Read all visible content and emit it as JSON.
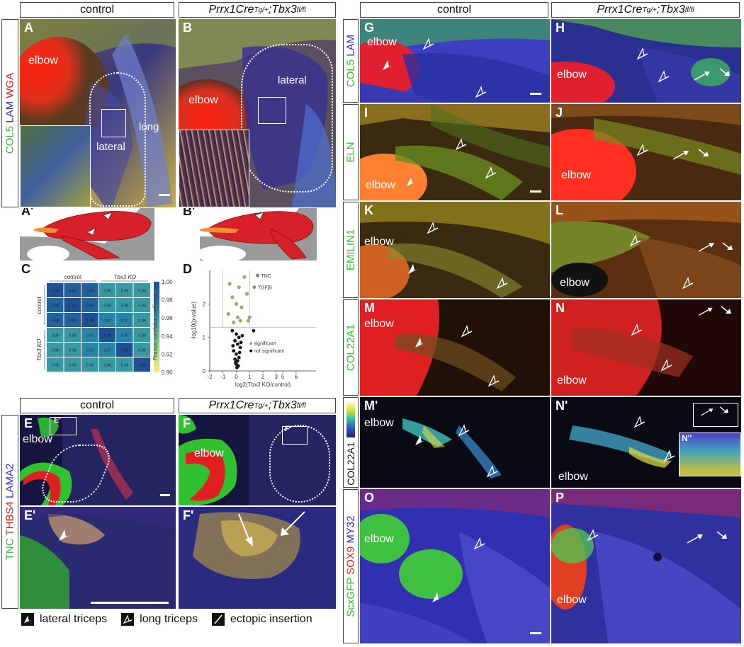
{
  "headers": {
    "left_control": "control",
    "left_mutant_pre": "Prrx1Cre",
    "left_mutant_sup1": "Tg/+",
    "left_mutant_mid": ";Tbx3",
    "left_mutant_sup2": "fl/fl",
    "right_control": "control",
    "right_mutant_pre": "Prrx1Cre",
    "right_mutant_sup1": "Tg/+",
    "right_mutant_mid": ";Tbx3",
    "right_mutant_sup2": "fl/fl",
    "lower_control": "control",
    "lower_mutant_pre": "Prrx1Cre",
    "lower_mutant_sup1": "Tg/+",
    "lower_mutant_mid": ";Tbx3",
    "lower_mutant_sup2": "fl/fl"
  },
  "stain_labels": {
    "ab_col5": "COL5",
    "ab_lam": "LAM",
    "ab_wga": "WGA",
    "gh_col5": "COL5",
    "gh_lam": "LAM",
    "ij": "ELN",
    "kl": "EMILIN1",
    "mn": "COL22A1",
    "mp": "COL22A1",
    "ef_tnc": "TNC",
    "ef_thbs4": "THBS4",
    "ef_lama2": "LAMA2",
    "op_scx": "ScxGFP",
    "op_sox9": "SOX9",
    "op_my32": "MY32"
  },
  "panels": {
    "A": {
      "label": "A",
      "t1": "elbow",
      "t2": "long",
      "t3": "lateral"
    },
    "B": {
      "label": "B",
      "t1": "elbow",
      "t2": "lateral"
    },
    "A2": {
      "label": "A'"
    },
    "B2": {
      "label": "B'"
    },
    "C": {
      "label": "C"
    },
    "D": {
      "label": "D"
    },
    "E": {
      "label": "E",
      "t1": "elbow",
      "inset": "E'"
    },
    "F": {
      "label": "F",
      "t1": "elbow",
      "inset": "F'"
    },
    "E2": {
      "label": "E'"
    },
    "F2": {
      "label": "F'"
    },
    "G": {
      "label": "G",
      "t1": "elbow"
    },
    "H": {
      "label": "H",
      "t1": "elbow"
    },
    "I": {
      "label": "I",
      "t1": "elbow"
    },
    "J": {
      "label": "J",
      "t1": "elbow"
    },
    "K": {
      "label": "K",
      "t1": "elbow"
    },
    "L": {
      "label": "L",
      "t1": "elbow"
    },
    "M": {
      "label": "M",
      "t1": "elbow"
    },
    "N": {
      "label": "N",
      "t1": "elbow"
    },
    "M2": {
      "label": "M'",
      "t1": "elbow"
    },
    "N2": {
      "label": "N'",
      "t1": "elbow",
      "inset": "N''"
    },
    "O": {
      "label": "O",
      "t1": "elbow"
    },
    "P": {
      "label": "P",
      "t1": "elbow"
    }
  },
  "chart_data": [
    {
      "type": "heatmap",
      "panel": "C",
      "col_groups": [
        "control",
        "Tbx3 KO"
      ],
      "row_groups": [
        "control",
        "Tbx3 KO"
      ],
      "values": [
        [
          1.0,
          0.99,
          0.99,
          0.96,
          0.96,
          0.96
        ],
        [
          0.99,
          1.0,
          0.99,
          0.96,
          0.96,
          0.96
        ],
        [
          0.99,
          0.99,
          1.0,
          0.97,
          0.97,
          0.96
        ],
        [
          0.96,
          0.96,
          0.97,
          1.0,
          0.97,
          0.96
        ],
        [
          0.96,
          0.96,
          0.97,
          0.97,
          1.0,
          0.96
        ],
        [
          0.96,
          0.96,
          0.96,
          0.96,
          0.96,
          1.0
        ]
      ],
      "colorbar_label": "Pearson correlation coefficient",
      "colorbar_ticks": [
        "1.00",
        "0.98",
        "0.96",
        "0.94",
        "0.92",
        "0.90"
      ]
    },
    {
      "type": "scatter",
      "panel": "D",
      "xlabel": "log2(Tbx3 KO/control)",
      "ylabel": "-log10(p-value)",
      "xticks": [
        "-2",
        "-1",
        "0",
        "1",
        "2",
        "3",
        "5",
        "6"
      ],
      "yticks": [
        "0",
        "1",
        "2"
      ],
      "annotations": [
        "TNC",
        "TGFβI"
      ],
      "legend": [
        "significant",
        "not significant"
      ],
      "significant": [
        [
          -0.5,
          2.6
        ],
        [
          0.2,
          2.5
        ],
        [
          -0.3,
          2.2
        ],
        [
          0.0,
          2.0
        ],
        [
          0.4,
          1.9
        ],
        [
          -0.6,
          1.7
        ],
        [
          0.1,
          1.6
        ],
        [
          0.3,
          1.5
        ],
        [
          -0.2,
          1.45
        ],
        [
          0.6,
          2.8
        ],
        [
          0.8,
          2.3
        ],
        [
          1.0,
          1.6
        ],
        [
          0.9,
          1.5
        ]
      ],
      "not_significant": [
        [
          -0.3,
          1.2
        ],
        [
          0.0,
          1.1
        ],
        [
          0.2,
          1.0
        ],
        [
          -0.1,
          0.9
        ],
        [
          0.1,
          0.8
        ],
        [
          0.3,
          0.7
        ],
        [
          -0.2,
          0.6
        ],
        [
          0.0,
          0.5
        ],
        [
          0.2,
          0.4
        ],
        [
          -0.1,
          0.35
        ],
        [
          0.1,
          0.3
        ],
        [
          0.0,
          0.2
        ],
        [
          0.05,
          0.1
        ],
        [
          0.15,
          0.15
        ],
        [
          -0.05,
          0.25
        ],
        [
          0.25,
          0.55
        ],
        [
          0.35,
          0.85
        ],
        [
          -0.25,
          0.75
        ],
        [
          0.45,
          1.05
        ],
        [
          1.3,
          1.2
        ]
      ]
    }
  ],
  "legend": {
    "item1": "lateral triceps",
    "item2": "long triceps",
    "item3": "ectopic insertion"
  },
  "colors": {
    "green": "#2fbf2f",
    "red": "#e0201a",
    "blue": "#2a2adf"
  }
}
